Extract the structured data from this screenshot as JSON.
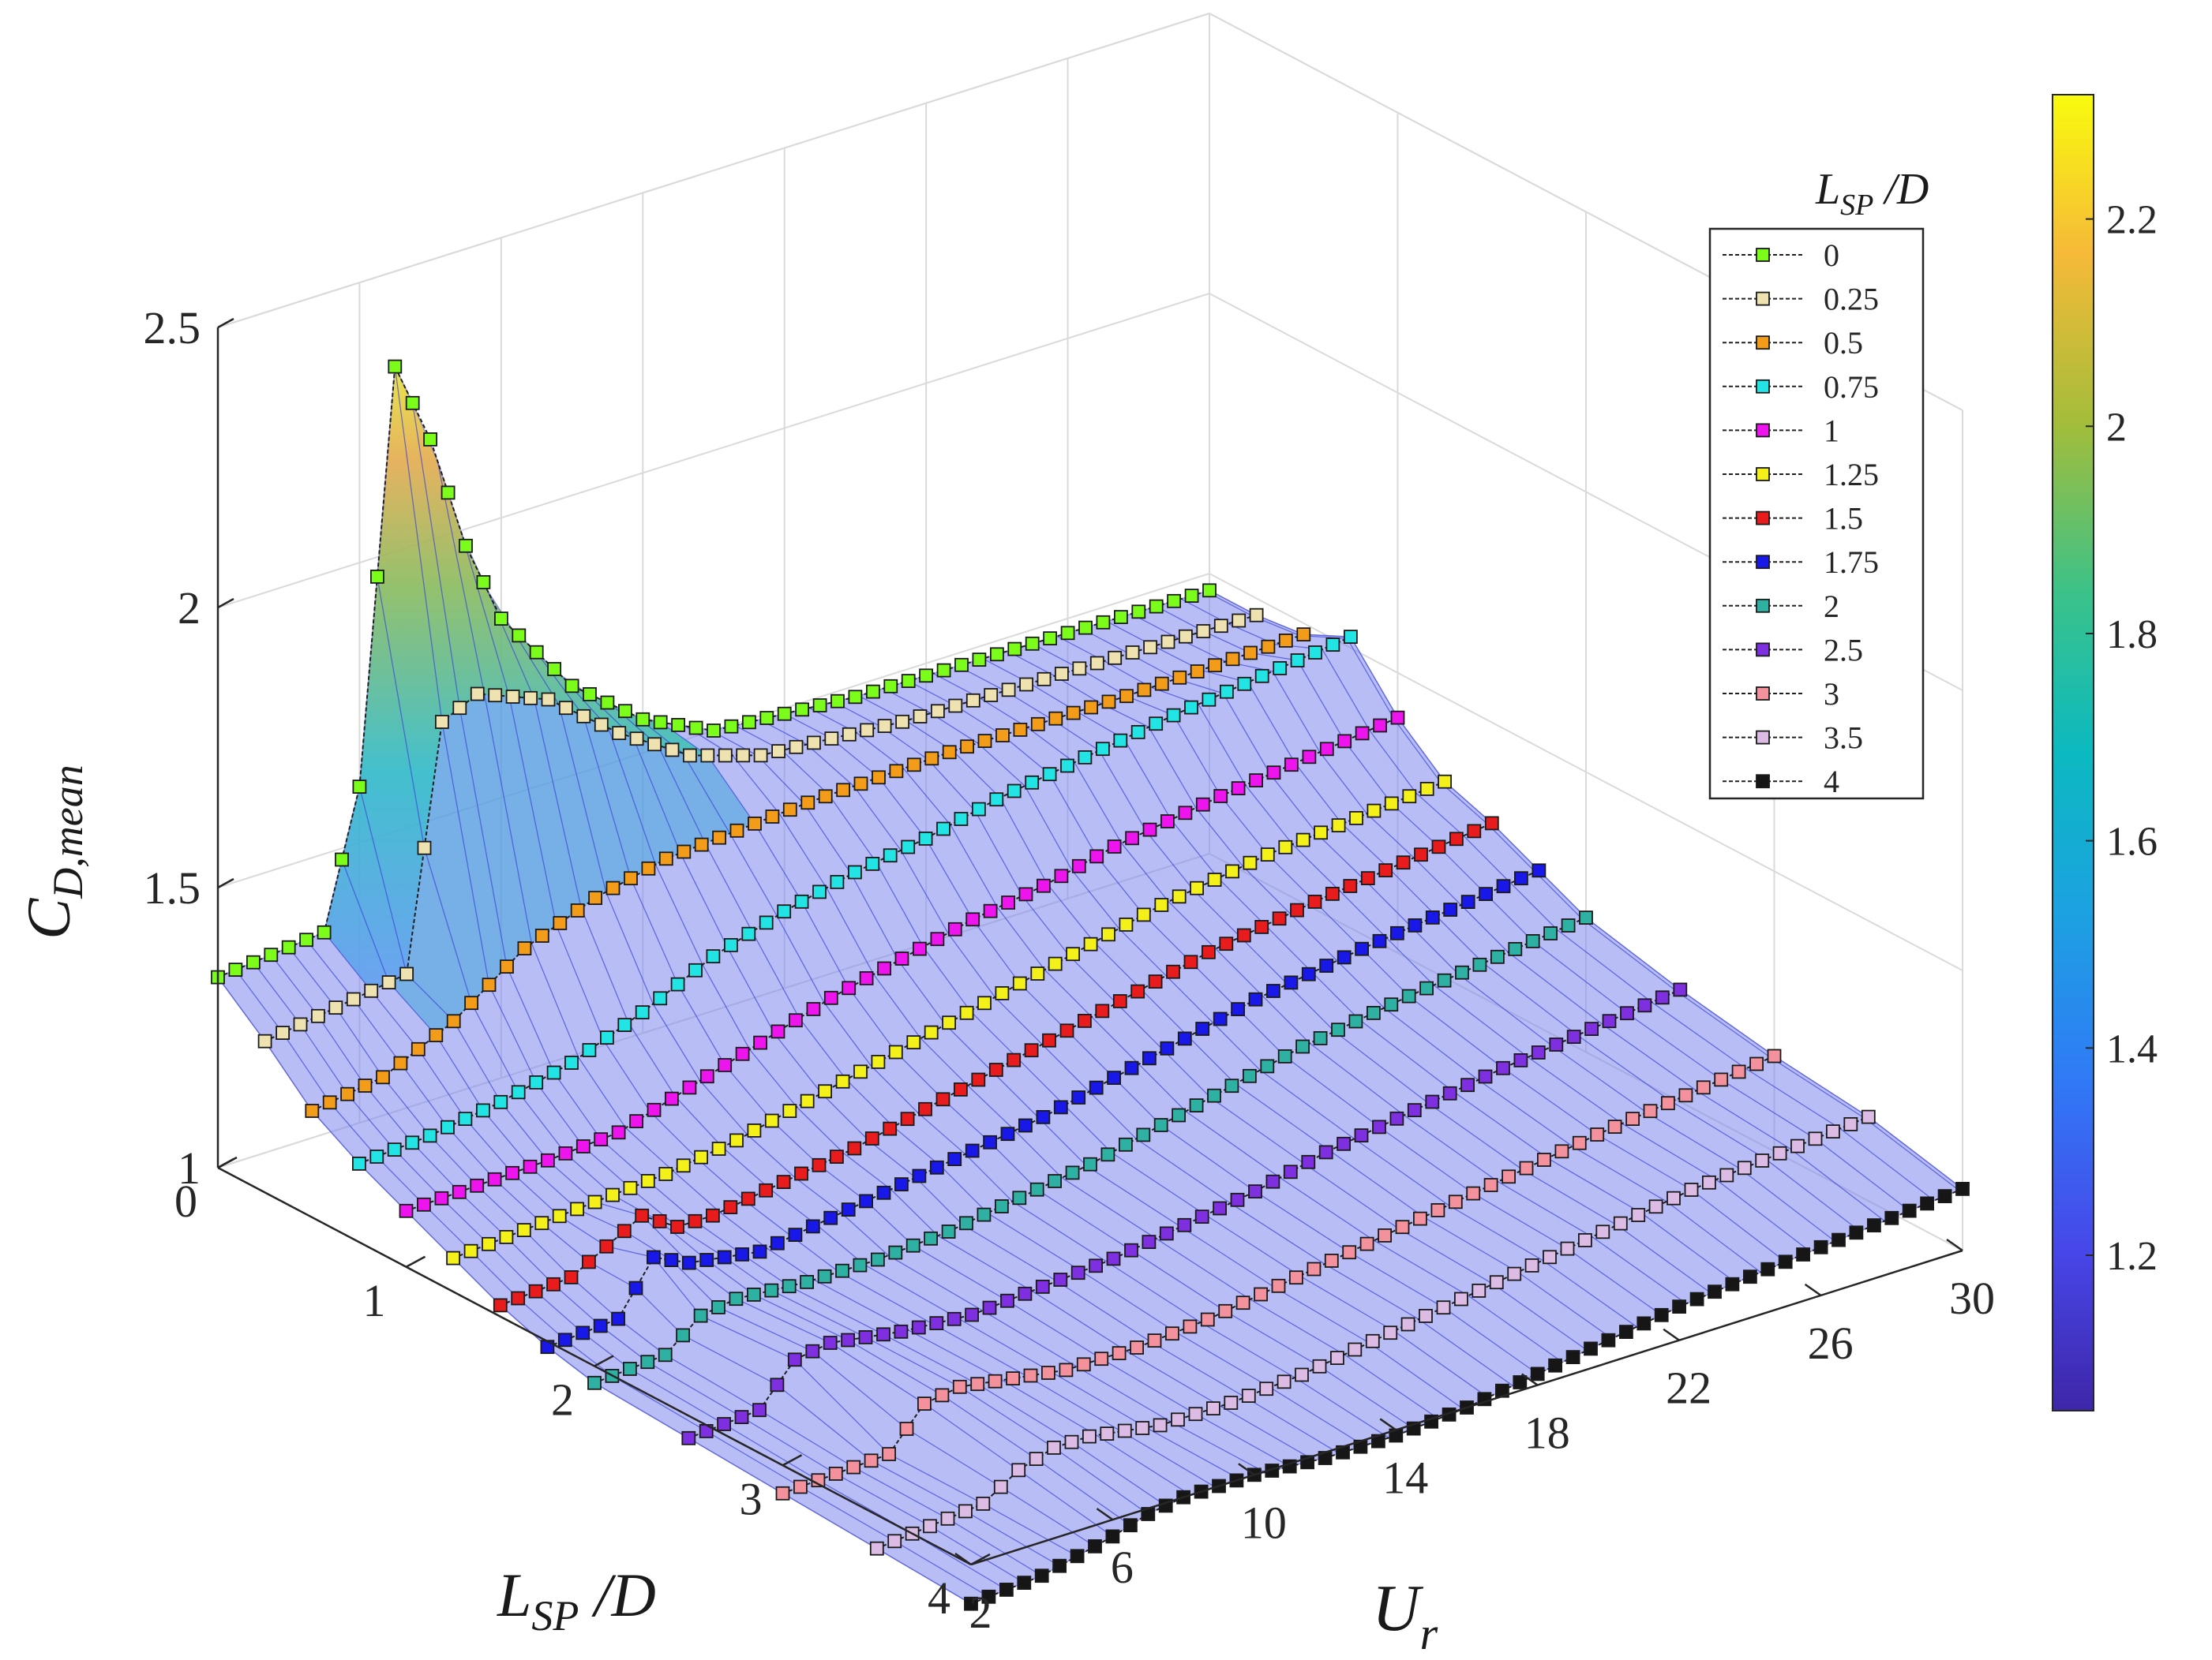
{
  "chart_data": {
    "type": "surface3d",
    "title": "",
    "xlabel": "U",
    "xlabel_sub": "r",
    "ylabel": "L",
    "ylabel_sub": "SP",
    "ylabel_suffix": " /D",
    "zlabel": "C",
    "zlabel_sub": "D,mean",
    "xlim": [
      2,
      30
    ],
    "ylim": [
      0,
      4
    ],
    "zlim": [
      1,
      2.5
    ],
    "x_ticks": [
      "2",
      "6",
      "10",
      "14",
      "18",
      "22",
      "26",
      "30"
    ],
    "y_ticks": [
      "0",
      "1",
      "2",
      "3",
      "4"
    ],
    "z_ticks": [
      "1",
      "1.5",
      "2",
      "2.5"
    ],
    "colorbar": {
      "range": [
        1.05,
        2.32
      ],
      "ticks": [
        "1.2",
        "1.4",
        "1.6",
        "1.8",
        "2",
        "2.2"
      ],
      "colormap": "parula"
    },
    "legend": {
      "title": "L",
      "title_sub": "SP",
      "title_suffix": " /D",
      "placement": "top-right"
    },
    "series": [
      {
        "name": "0",
        "lsp": 0,
        "color": "#7cfc1a",
        "ur_min": 2,
        "ur_max": 30,
        "knots": [
          [
            2,
            1.34
          ],
          [
            5,
            1.36
          ],
          [
            6,
            1.6
          ],
          [
            7,
            2.33
          ],
          [
            8,
            2.18
          ],
          [
            9,
            1.97
          ],
          [
            10,
            1.82
          ],
          [
            12,
            1.66
          ],
          [
            14,
            1.56
          ],
          [
            16,
            1.5
          ],
          [
            20,
            1.48
          ],
          [
            30,
            1.47
          ]
        ]
      },
      {
        "name": "0.25",
        "lsp": 0.25,
        "color": "#eee2b0",
        "ur_min": 2,
        "ur_max": 30,
        "knots": [
          [
            2,
            1.27
          ],
          [
            4,
            1.29
          ],
          [
            6,
            1.31
          ],
          [
            7,
            1.74
          ],
          [
            8,
            1.77
          ],
          [
            10,
            1.72
          ],
          [
            12,
            1.62
          ],
          [
            14,
            1.54
          ],
          [
            16,
            1.5
          ],
          [
            20,
            1.48
          ],
          [
            30,
            1.47
          ]
        ]
      },
      {
        "name": "0.5",
        "lsp": 0.5,
        "color": "#f39c1a",
        "ur_min": 2,
        "ur_max": 30,
        "knots": [
          [
            2,
            1.19
          ],
          [
            4,
            1.21
          ],
          [
            6,
            1.27
          ],
          [
            8,
            1.36
          ],
          [
            10,
            1.41
          ],
          [
            12,
            1.44
          ],
          [
            14,
            1.45
          ],
          [
            16,
            1.46
          ],
          [
            20,
            1.47
          ],
          [
            25,
            1.47
          ],
          [
            30,
            1.48
          ]
        ]
      },
      {
        "name": "0.75",
        "lsp": 0.75,
        "color": "#22e4e4",
        "ur_min": 2,
        "ur_max": 30,
        "knots": [
          [
            2,
            1.14
          ],
          [
            4,
            1.15
          ],
          [
            6,
            1.17
          ],
          [
            8,
            1.2
          ],
          [
            10,
            1.25
          ],
          [
            12,
            1.31
          ],
          [
            14,
            1.35
          ],
          [
            16,
            1.38
          ],
          [
            18,
            1.4
          ],
          [
            20,
            1.43
          ],
          [
            22,
            1.45
          ],
          [
            25,
            1.48
          ],
          [
            30,
            1.52
          ]
        ]
      },
      {
        "name": "1",
        "lsp": 1,
        "color": "#ee14ee",
        "ur_min": 2,
        "ur_max": 30,
        "knots": [
          [
            2,
            1.1
          ],
          [
            6,
            1.11
          ],
          [
            8,
            1.12
          ],
          [
            10,
            1.16
          ],
          [
            12,
            1.2
          ],
          [
            14,
            1.24
          ],
          [
            16,
            1.27
          ],
          [
            18,
            1.3
          ],
          [
            20,
            1.32
          ],
          [
            22,
            1.35
          ],
          [
            25,
            1.38
          ],
          [
            30,
            1.42
          ]
        ]
      },
      {
        "name": "1.25",
        "lsp": 1.25,
        "color": "#f4f01a",
        "ur_min": 2,
        "ur_max": 30,
        "knots": [
          [
            2,
            1.06
          ],
          [
            6,
            1.08
          ],
          [
            8,
            1.09
          ],
          [
            10,
            1.11
          ],
          [
            12,
            1.14
          ],
          [
            14,
            1.17
          ],
          [
            16,
            1.2
          ],
          [
            18,
            1.23
          ],
          [
            20,
            1.26
          ],
          [
            22,
            1.29
          ],
          [
            25,
            1.32
          ],
          [
            30,
            1.35
          ]
        ]
      },
      {
        "name": "1.5",
        "lsp": 1.5,
        "color": "#e81c1c",
        "ur_min": 2,
        "ur_max": 30,
        "knots": [
          [
            2,
            1.02
          ],
          [
            4,
            1.03
          ],
          [
            6,
            1.1
          ],
          [
            7,
            1.06
          ],
          [
            8,
            1.06
          ],
          [
            10,
            1.08
          ],
          [
            12,
            1.1
          ],
          [
            14,
            1.13
          ],
          [
            16,
            1.16
          ],
          [
            18,
            1.19
          ],
          [
            20,
            1.22
          ],
          [
            22,
            1.25
          ],
          [
            25,
            1.28
          ],
          [
            30,
            1.32
          ]
        ]
      },
      {
        "name": "1.75",
        "lsp": 1.75,
        "color": "#1818e8",
        "ur_min": 2,
        "ur_max": 30,
        "knots": [
          [
            2,
            0.99
          ],
          [
            4,
            1.0
          ],
          [
            5,
            1.09
          ],
          [
            6,
            1.06
          ],
          [
            8,
            1.04
          ],
          [
            10,
            1.06
          ],
          [
            12,
            1.08
          ],
          [
            14,
            1.1
          ],
          [
            16,
            1.12
          ],
          [
            18,
            1.15
          ],
          [
            20,
            1.18
          ],
          [
            22,
            1.21
          ],
          [
            25,
            1.24
          ],
          [
            30,
            1.28
          ]
        ]
      },
      {
        "name": "2",
        "lsp": 2,
        "color": "#2eb0a2",
        "ur_min": 2,
        "ur_max": 30,
        "knots": [
          [
            2,
            0.97
          ],
          [
            4,
            0.98
          ],
          [
            5,
            1.03
          ],
          [
            6,
            1.04
          ],
          [
            8,
            1.03
          ],
          [
            10,
            1.03
          ],
          [
            12,
            1.04
          ],
          [
            14,
            1.06
          ],
          [
            16,
            1.08
          ],
          [
            18,
            1.11
          ],
          [
            20,
            1.14
          ],
          [
            22,
            1.17
          ],
          [
            25,
            1.2
          ],
          [
            30,
            1.24
          ]
        ]
      },
      {
        "name": "2.5",
        "lsp": 2.5,
        "color": "#7e2fe0",
        "ur_min": 2,
        "ur_max": 30,
        "knots": [
          [
            2,
            0.96
          ],
          [
            4,
            0.97
          ],
          [
            5,
            1.04
          ],
          [
            6,
            1.05
          ],
          [
            8,
            1.03
          ],
          [
            10,
            1.02
          ],
          [
            12,
            1.03
          ],
          [
            14,
            1.04
          ],
          [
            16,
            1.06
          ],
          [
            18,
            1.08
          ],
          [
            20,
            1.11
          ],
          [
            22,
            1.13
          ],
          [
            25,
            1.16
          ],
          [
            30,
            1.2
          ]
        ]
      },
      {
        "name": "3",
        "lsp": 3,
        "color": "#f3919c",
        "ur_min": 2,
        "ur_max": 30,
        "knots": [
          [
            2,
            0.95
          ],
          [
            5,
            0.96
          ],
          [
            6,
            1.03
          ],
          [
            7,
            1.04
          ],
          [
            8,
            1.03
          ],
          [
            10,
            1.01
          ],
          [
            12,
            1.01
          ],
          [
            14,
            1.02
          ],
          [
            16,
            1.04
          ],
          [
            18,
            1.06
          ],
          [
            20,
            1.08
          ],
          [
            22,
            1.1
          ],
          [
            25,
            1.13
          ],
          [
            30,
            1.17
          ]
        ]
      },
      {
        "name": "3.5",
        "lsp": 3.5,
        "color": "#dcbce4",
        "ur_min": 2,
        "ur_max": 30,
        "knots": [
          [
            2,
            0.94
          ],
          [
            5,
            0.96
          ],
          [
            6,
            1.0
          ],
          [
            7,
            1.02
          ],
          [
            8,
            1.02
          ],
          [
            10,
            1.0
          ],
          [
            12,
            1.0
          ],
          [
            14,
            1.01
          ],
          [
            16,
            1.03
          ],
          [
            18,
            1.05
          ],
          [
            20,
            1.07
          ],
          [
            22,
            1.09
          ],
          [
            25,
            1.12
          ],
          [
            30,
            1.15
          ]
        ]
      },
      {
        "name": "4",
        "lsp": 4,
        "color": "#161616",
        "ur_min": 2,
        "ur_max": 30,
        "knots": [
          [
            2,
            0.93
          ],
          [
            4,
            0.94
          ],
          [
            6,
            0.97
          ],
          [
            7,
            0.99
          ],
          [
            8,
            1.0
          ],
          [
            10,
            1.0
          ],
          [
            12,
            0.99
          ],
          [
            14,
            0.99
          ],
          [
            16,
            1.0
          ],
          [
            18,
            1.02
          ],
          [
            20,
            1.04
          ],
          [
            22,
            1.06
          ],
          [
            25,
            1.08
          ],
          [
            30,
            1.11
          ]
        ]
      }
    ]
  }
}
